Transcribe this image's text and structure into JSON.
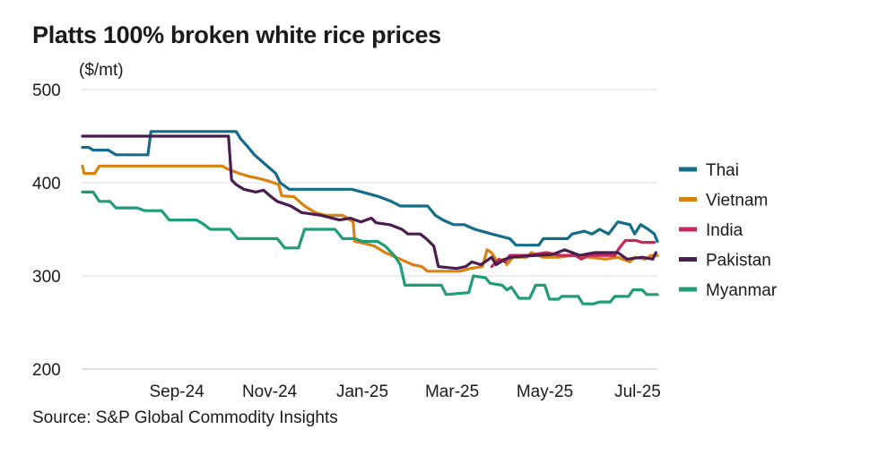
{
  "title": "Platts 100% broken white rice prices",
  "unit": "($/mt)",
  "source": "Source: S&P Global Commodity Insights",
  "chart_data": {
    "type": "line",
    "title": "Platts 100% broken white rice prices",
    "ylabel": "($/mt)",
    "xlabel": "",
    "ylim": [
      200,
      500
    ],
    "yticks": [
      200,
      300,
      400,
      500
    ],
    "xlim": [
      "2024-07-15",
      "2025-07-28"
    ],
    "xticks": [
      {
        "date": "2024-09-15",
        "label": "Sep-24"
      },
      {
        "date": "2024-11-15",
        "label": "Nov-24"
      },
      {
        "date": "2025-01-15",
        "label": "Jan-25"
      },
      {
        "date": "2025-03-15",
        "label": "Mar-25"
      },
      {
        "date": "2025-05-15",
        "label": "May-25"
      },
      {
        "date": "2025-07-15",
        "label": "Jul-25"
      }
    ],
    "grid": true,
    "legend": "right",
    "series": [
      {
        "name": "Thai",
        "color": "#126c8a",
        "points": [
          [
            "2024-07-15",
            438
          ],
          [
            "2024-07-19",
            438
          ],
          [
            "2024-07-22",
            435
          ],
          [
            "2024-08-01",
            435
          ],
          [
            "2024-08-06",
            430
          ],
          [
            "2024-08-27",
            430
          ],
          [
            "2024-08-29",
            455
          ],
          [
            "2024-10-24",
            455
          ],
          [
            "2024-10-27",
            447
          ],
          [
            "2024-10-31",
            440
          ],
          [
            "2024-11-05",
            430
          ],
          [
            "2024-11-12",
            420
          ],
          [
            "2024-11-19",
            410
          ],
          [
            "2024-11-22",
            400
          ],
          [
            "2024-11-28",
            393
          ],
          [
            "2025-01-08",
            393
          ],
          [
            "2025-01-15",
            390
          ],
          [
            "2025-01-26",
            385
          ],
          [
            "2025-02-03",
            380
          ],
          [
            "2025-02-09",
            375
          ],
          [
            "2025-02-27",
            375
          ],
          [
            "2025-03-04",
            365
          ],
          [
            "2025-03-09",
            360
          ],
          [
            "2025-03-16",
            355
          ],
          [
            "2025-03-23",
            355
          ],
          [
            "2025-03-30",
            350
          ],
          [
            "2025-04-10",
            345
          ],
          [
            "2025-04-22",
            340
          ],
          [
            "2025-04-26",
            333
          ],
          [
            "2025-05-11",
            333
          ],
          [
            "2025-05-14",
            340
          ],
          [
            "2025-05-30",
            340
          ],
          [
            "2025-06-02",
            345
          ],
          [
            "2025-06-10",
            348
          ],
          [
            "2025-06-15",
            345
          ],
          [
            "2025-06-20",
            350
          ],
          [
            "2025-06-26",
            345
          ],
          [
            "2025-07-02",
            358
          ],
          [
            "2025-07-10",
            355
          ],
          [
            "2025-07-13",
            345
          ],
          [
            "2025-07-17",
            355
          ],
          [
            "2025-07-22",
            350
          ],
          [
            "2025-07-26",
            345
          ],
          [
            "2025-07-28",
            337
          ]
        ]
      },
      {
        "name": "Vietnam",
        "color": "#d9820f",
        "points": [
          [
            "2024-07-15",
            418
          ],
          [
            "2024-07-16",
            410
          ],
          [
            "2024-07-23",
            410
          ],
          [
            "2024-07-26",
            418
          ],
          [
            "2024-10-15",
            418
          ],
          [
            "2024-10-18",
            415
          ],
          [
            "2024-10-26",
            410
          ],
          [
            "2024-11-01",
            407
          ],
          [
            "2024-11-07",
            405
          ],
          [
            "2024-11-14",
            402
          ],
          [
            "2024-11-21",
            398
          ],
          [
            "2024-11-23",
            386
          ],
          [
            "2024-12-01",
            385
          ],
          [
            "2024-12-08",
            375
          ],
          [
            "2024-12-15",
            368
          ],
          [
            "2024-12-22",
            365
          ],
          [
            "2025-01-02",
            365
          ],
          [
            "2025-01-09",
            358
          ],
          [
            "2025-01-10",
            337
          ],
          [
            "2025-01-16",
            335
          ],
          [
            "2025-01-23",
            332
          ],
          [
            "2025-01-30",
            325
          ],
          [
            "2025-02-09",
            318
          ],
          [
            "2025-02-17",
            312
          ],
          [
            "2025-02-23",
            310
          ],
          [
            "2025-02-27",
            305
          ],
          [
            "2025-03-20",
            305
          ],
          [
            "2025-03-27",
            308
          ],
          [
            "2025-04-04",
            310
          ],
          [
            "2025-04-07",
            328
          ],
          [
            "2025-04-10",
            325
          ],
          [
            "2025-04-14",
            314
          ],
          [
            "2025-04-18",
            318
          ],
          [
            "2025-04-20",
            312
          ],
          [
            "2025-04-24",
            320
          ],
          [
            "2025-05-03",
            320
          ],
          [
            "2025-05-06",
            325
          ],
          [
            "2025-05-14",
            320
          ],
          [
            "2025-05-24",
            320
          ],
          [
            "2025-06-03",
            322
          ],
          [
            "2025-06-13",
            320
          ],
          [
            "2025-06-24",
            318
          ],
          [
            "2025-07-02",
            320
          ],
          [
            "2025-07-10",
            315
          ],
          [
            "2025-07-13",
            320
          ],
          [
            "2025-07-20",
            318
          ],
          [
            "2025-07-24",
            322
          ],
          [
            "2025-07-28",
            322
          ]
        ]
      },
      {
        "name": "India",
        "color": "#c4285c",
        "points": [
          [
            "2025-04-10",
            310
          ],
          [
            "2025-04-15",
            318
          ],
          [
            "2025-04-19",
            315
          ],
          [
            "2025-04-22",
            322
          ],
          [
            "2025-05-04",
            322
          ],
          [
            "2025-05-16",
            325
          ],
          [
            "2025-05-25",
            322
          ],
          [
            "2025-06-04",
            322
          ],
          [
            "2025-06-08",
            318
          ],
          [
            "2025-06-13",
            322
          ],
          [
            "2025-06-30",
            322
          ],
          [
            "2025-07-03",
            330
          ],
          [
            "2025-07-07",
            338
          ],
          [
            "2025-07-14",
            338
          ],
          [
            "2025-07-18",
            336
          ],
          [
            "2025-07-26",
            336
          ]
        ]
      },
      {
        "name": "Pakistan",
        "color": "#4a1c4f",
        "points": [
          [
            "2024-07-15",
            450
          ],
          [
            "2024-10-19",
            450
          ],
          [
            "2024-10-21",
            403
          ],
          [
            "2024-10-24",
            398
          ],
          [
            "2024-10-29",
            393
          ],
          [
            "2024-11-06",
            390
          ],
          [
            "2024-11-11",
            392
          ],
          [
            "2024-11-16",
            385
          ],
          [
            "2024-11-20",
            380
          ],
          [
            "2024-11-29",
            375
          ],
          [
            "2024-12-06",
            368
          ],
          [
            "2024-12-19",
            365
          ],
          [
            "2024-12-31",
            360
          ],
          [
            "2025-01-07",
            362
          ],
          [
            "2025-01-14",
            358
          ],
          [
            "2025-01-21",
            362
          ],
          [
            "2025-01-24",
            357
          ],
          [
            "2025-02-02",
            355
          ],
          [
            "2025-02-10",
            350
          ],
          [
            "2025-02-14",
            345
          ],
          [
            "2025-02-22",
            345
          ],
          [
            "2025-02-26",
            340
          ],
          [
            "2025-03-03",
            332
          ],
          [
            "2025-03-06",
            310
          ],
          [
            "2025-03-18",
            308
          ],
          [
            "2025-03-24",
            310
          ],
          [
            "2025-03-28",
            315
          ],
          [
            "2025-04-03",
            312
          ],
          [
            "2025-04-10",
            320
          ],
          [
            "2025-04-13",
            312
          ],
          [
            "2025-04-19",
            318
          ],
          [
            "2025-04-23",
            320
          ],
          [
            "2025-05-09",
            322
          ],
          [
            "2025-05-20",
            323
          ],
          [
            "2025-05-28",
            328
          ],
          [
            "2025-06-07",
            322
          ],
          [
            "2025-06-17",
            325
          ],
          [
            "2025-07-02",
            325
          ],
          [
            "2025-07-08",
            318
          ],
          [
            "2025-07-18",
            320
          ],
          [
            "2025-07-25",
            318
          ],
          [
            "2025-07-27",
            325
          ]
        ]
      },
      {
        "name": "Myanmar",
        "color": "#1f9c78",
        "points": [
          [
            "2024-07-15",
            390
          ],
          [
            "2024-07-22",
            390
          ],
          [
            "2024-07-26",
            380
          ],
          [
            "2024-08-02",
            380
          ],
          [
            "2024-08-06",
            373
          ],
          [
            "2024-08-20",
            373
          ],
          [
            "2024-08-25",
            370
          ],
          [
            "2024-09-05",
            370
          ],
          [
            "2024-09-10",
            360
          ],
          [
            "2024-09-28",
            360
          ],
          [
            "2024-10-03",
            355
          ],
          [
            "2024-10-07",
            350
          ],
          [
            "2024-10-20",
            350
          ],
          [
            "2024-10-25",
            340
          ],
          [
            "2024-11-05",
            340
          ],
          [
            "2024-11-07",
            340
          ],
          [
            "2024-11-20",
            340
          ],
          [
            "2024-11-25",
            330
          ],
          [
            "2024-12-04",
            330
          ],
          [
            "2024-12-08",
            350
          ],
          [
            "2024-12-28",
            350
          ],
          [
            "2025-01-02",
            340
          ],
          [
            "2025-01-10",
            340
          ],
          [
            "2025-01-15",
            337
          ],
          [
            "2025-01-25",
            337
          ],
          [
            "2025-01-30",
            332
          ],
          [
            "2025-02-05",
            322
          ],
          [
            "2025-02-09",
            312
          ],
          [
            "2025-02-12",
            290
          ],
          [
            "2025-03-08",
            290
          ],
          [
            "2025-03-11",
            280
          ],
          [
            "2025-03-26",
            282
          ],
          [
            "2025-03-29",
            300
          ],
          [
            "2025-04-06",
            298
          ],
          [
            "2025-04-09",
            292
          ],
          [
            "2025-04-17",
            290
          ],
          [
            "2025-04-20",
            285
          ],
          [
            "2025-04-23",
            288
          ],
          [
            "2025-04-28",
            276
          ],
          [
            "2025-05-05",
            276
          ],
          [
            "2025-05-09",
            290
          ],
          [
            "2025-05-15",
            290
          ],
          [
            "2025-05-18",
            275
          ],
          [
            "2025-05-24",
            275
          ],
          [
            "2025-05-26",
            278
          ],
          [
            "2025-06-06",
            278
          ],
          [
            "2025-06-09",
            270
          ],
          [
            "2025-06-16",
            270
          ],
          [
            "2025-06-20",
            272
          ],
          [
            "2025-06-27",
            272
          ],
          [
            "2025-06-30",
            278
          ],
          [
            "2025-07-09",
            278
          ],
          [
            "2025-07-12",
            285
          ],
          [
            "2025-07-18",
            285
          ],
          [
            "2025-07-21",
            280
          ],
          [
            "2025-07-28",
            280
          ]
        ]
      }
    ]
  }
}
